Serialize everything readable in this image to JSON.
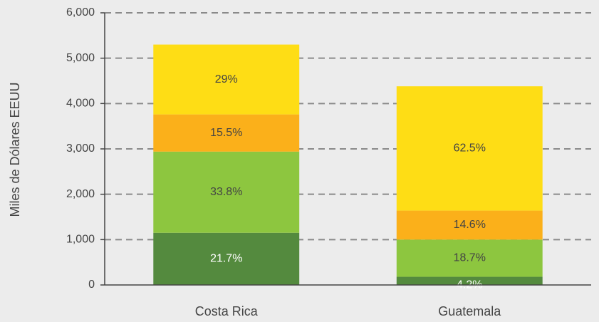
{
  "chart_data": {
    "type": "stacked_bar",
    "y_label": "Miles de Dólares EEUU",
    "categories": [
      "Costa Rica",
      "Guatemala"
    ],
    "series": [
      {
        "color": "#548a3e",
        "values": [
          1150,
          180
        ],
        "value_labels": [
          "21.7%",
          "4.2%"
        ]
      },
      {
        "color": "#8dc63f",
        "values": [
          1790,
          820
        ],
        "value_labels": [
          "33.8%",
          "18.7%"
        ]
      },
      {
        "color": "#fbb01a",
        "values": [
          820,
          640
        ],
        "value_labels": [
          "15.5%",
          "14.6%"
        ]
      },
      {
        "color": "#fedd15",
        "values": [
          1540,
          2740
        ],
        "value_labels": [
          "29%",
          "62.5%"
        ]
      }
    ],
    "ylim": [
      0,
      6000
    ],
    "yticks": [
      0,
      {
        "value": 1000,
        "label": "1,000"
      },
      {
        "value": 2000,
        "label": "2,000"
      },
      {
        "value": 3000,
        "label": "3,000"
      },
      {
        "value": 4000,
        "label": "4,000"
      },
      {
        "value": 5000,
        "label": "5,000"
      },
      {
        "value": 6000,
        "label": "6,000"
      }
    ],
    "grid": true
  }
}
